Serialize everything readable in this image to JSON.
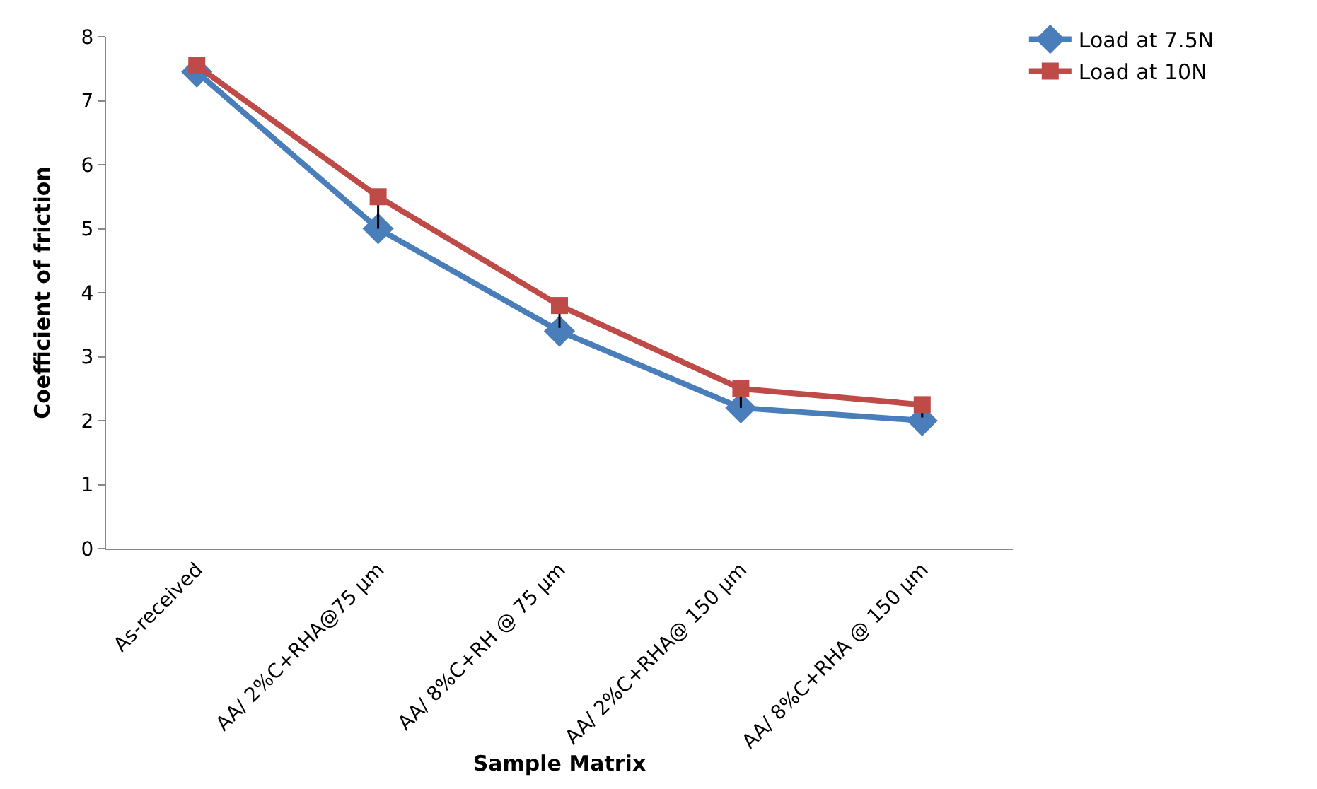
{
  "chart_data": {
    "type": "line",
    "xlabel": "Sample Matrix",
    "ylabel": "Coefficient of friction",
    "categories": [
      "As-received",
      "AA/ 2%C+RHA@75 µm",
      "AA/ 8%C+RH @ 75 µm",
      "AA/ 2%C+RHA@ 150 µm",
      "AA/ 8%C+RHA @ 150 µm"
    ],
    "series": [
      {
        "name": "Load at 7.5N",
        "color": "#4a7ebb",
        "marker": "diamond",
        "values": [
          7.45,
          5.0,
          3.4,
          2.2,
          2.0
        ]
      },
      {
        "name": "Load at 10N",
        "color": "#be4b48",
        "marker": "square",
        "values": [
          7.55,
          5.5,
          3.8,
          2.5,
          2.25
        ],
        "errors": [
          null,
          [
            5.0,
            5.5
          ],
          [
            3.45,
            3.8
          ],
          [
            2.2,
            2.5
          ],
          [
            2.05,
            2.25
          ]
        ]
      }
    ],
    "ylim": [
      0,
      8
    ],
    "yticks": [
      0,
      1,
      2,
      3,
      4,
      5,
      6,
      7,
      8
    ],
    "grid": false,
    "legend": "top right",
    "line_style": "solid"
  }
}
